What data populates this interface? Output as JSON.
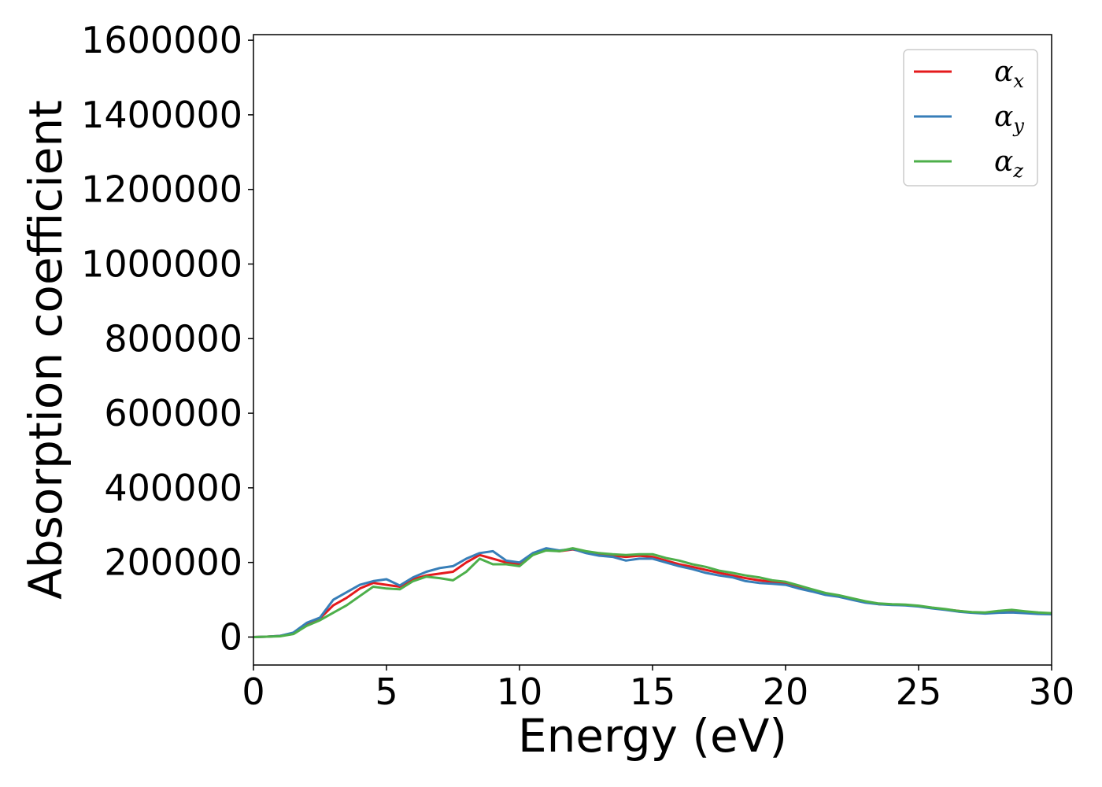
{
  "chart_data": {
    "type": "line",
    "xlabel": "Energy (eV)",
    "ylabel": "Absorption coefficient",
    "xlim": [
      0,
      30
    ],
    "ylim": [
      -75000,
      1615000
    ],
    "xticks": [
      0,
      5,
      10,
      15,
      20,
      25,
      30
    ],
    "xtick_labels": [
      "0",
      "5",
      "10",
      "15",
      "20",
      "25",
      "30"
    ],
    "yticks": [
      0,
      200000,
      400000,
      600000,
      800000,
      1000000,
      1200000,
      1400000,
      1600000
    ],
    "ytick_labels": [
      "0",
      "200000",
      "400000",
      "600000",
      "800000",
      "1000000",
      "1200000",
      "1400000",
      "1600000"
    ],
    "grid": false,
    "legend": "top-right",
    "x": [
      0,
      0.5,
      1,
      1.5,
      2,
      2.5,
      3,
      3.5,
      4,
      4.5,
      5,
      5.5,
      6,
      6.5,
      7,
      7.5,
      8,
      8.5,
      9,
      9.5,
      10,
      10.5,
      11,
      11.5,
      12,
      12.5,
      13,
      13.5,
      14,
      14.5,
      15,
      15.5,
      16,
      16.5,
      17,
      17.5,
      18,
      18.5,
      19,
      19.5,
      20,
      20.5,
      21,
      21.5,
      22,
      22.5,
      23,
      23.5,
      24,
      24.5,
      25,
      25.5,
      26,
      26.5,
      27,
      27.5,
      28,
      28.5,
      29,
      29.5,
      30
    ],
    "series": [
      {
        "name": "α",
        "sub": "x",
        "color": "#e41a1c",
        "values": [
          0,
          1000,
          3000,
          10000,
          35000,
          50000,
          85000,
          105000,
          130000,
          145000,
          140000,
          135000,
          155000,
          165000,
          170000,
          175000,
          200000,
          220000,
          210000,
          200000,
          195000,
          220000,
          235000,
          230000,
          235000,
          228000,
          222000,
          218000,
          215000,
          218000,
          215000,
          205000,
          195000,
          188000,
          180000,
          172000,
          165000,
          158000,
          152000,
          148000,
          145000,
          135000,
          125000,
          115000,
          110000,
          102000,
          95000,
          88000,
          87000,
          86000,
          83000,
          78000,
          74000,
          70000,
          66000,
          65000,
          68000,
          70000,
          67000,
          64000,
          62000
        ]
      },
      {
        "name": "α",
        "sub": "y",
        "color": "#377eb8",
        "values": [
          0,
          1000,
          3000,
          12000,
          38000,
          52000,
          100000,
          120000,
          140000,
          150000,
          155000,
          138000,
          160000,
          175000,
          185000,
          190000,
          210000,
          225000,
          230000,
          205000,
          200000,
          225000,
          238000,
          232000,
          236000,
          225000,
          218000,
          215000,
          205000,
          210000,
          210000,
          200000,
          190000,
          182000,
          172000,
          165000,
          160000,
          150000,
          145000,
          143000,
          140000,
          130000,
          122000,
          113000,
          108000,
          100000,
          92000,
          88000,
          86000,
          85000,
          82000,
          77000,
          73000,
          68000,
          65000,
          63000,
          65000,
          66000,
          64000,
          62000,
          61000
        ]
      },
      {
        "name": "α",
        "sub": "z",
        "color": "#4daf4a",
        "values": [
          0,
          1000,
          2000,
          8000,
          30000,
          45000,
          65000,
          85000,
          110000,
          135000,
          130000,
          128000,
          150000,
          162000,
          158000,
          152000,
          175000,
          210000,
          195000,
          195000,
          190000,
          220000,
          232000,
          230000,
          238000,
          230000,
          225000,
          222000,
          220000,
          222000,
          222000,
          212000,
          205000,
          195000,
          188000,
          178000,
          172000,
          165000,
          160000,
          152000,
          148000,
          138000,
          128000,
          118000,
          112000,
          104000,
          96000,
          90000,
          88000,
          87000,
          84000,
          79000,
          75000,
          70000,
          67000,
          66000,
          70000,
          73000,
          69000,
          66000,
          64000
        ]
      }
    ]
  }
}
